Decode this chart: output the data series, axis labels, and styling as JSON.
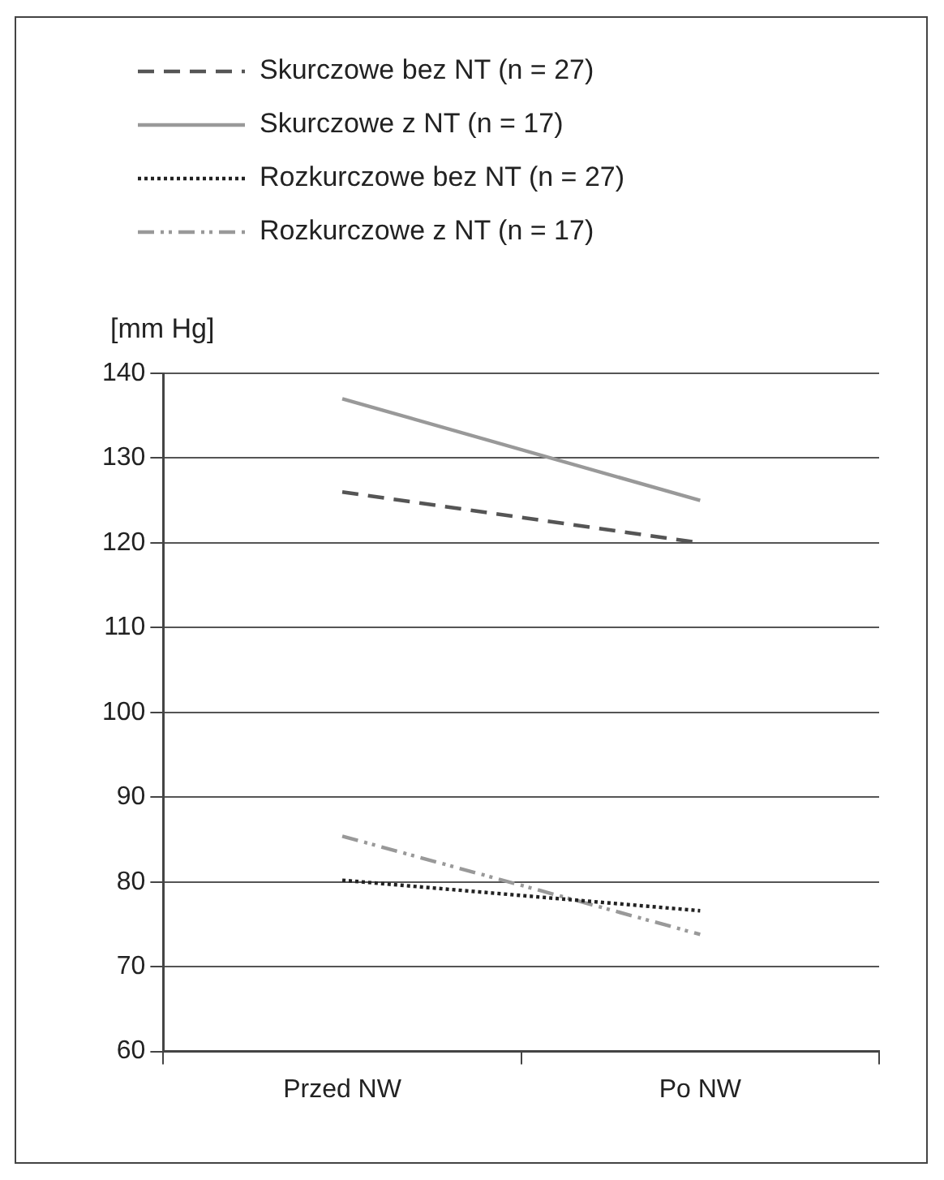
{
  "chart_data": {
    "type": "line",
    "ylabel": "[mm Hg]",
    "categories": [
      "Przed NW",
      "Po NW"
    ],
    "series": [
      {
        "name": "Skurczowe bez NT (n = 27)",
        "color": "#555555",
        "line_style": "dashed",
        "values": [
          126,
          120
        ]
      },
      {
        "name": "Skurczowe z NT (n = 17)",
        "color": "#999999",
        "line_style": "solid",
        "values": [
          137,
          125
        ]
      },
      {
        "name": "Rozkurczowe bez NT (n = 27)",
        "color": "#222222",
        "line_style": "dotted",
        "values": [
          80.2,
          76.6
        ]
      },
      {
        "name": "Rozkurczowe z NT (n = 17)",
        "color": "#999999",
        "line_style": "dashdot",
        "values": [
          85.4,
          73.8
        ]
      }
    ],
    "ylim": [
      60,
      140
    ],
    "yticks": [
      60,
      70,
      80,
      90,
      100,
      110,
      120,
      130,
      140
    ],
    "grid": "y",
    "legend": "top left",
    "marker": "none"
  }
}
